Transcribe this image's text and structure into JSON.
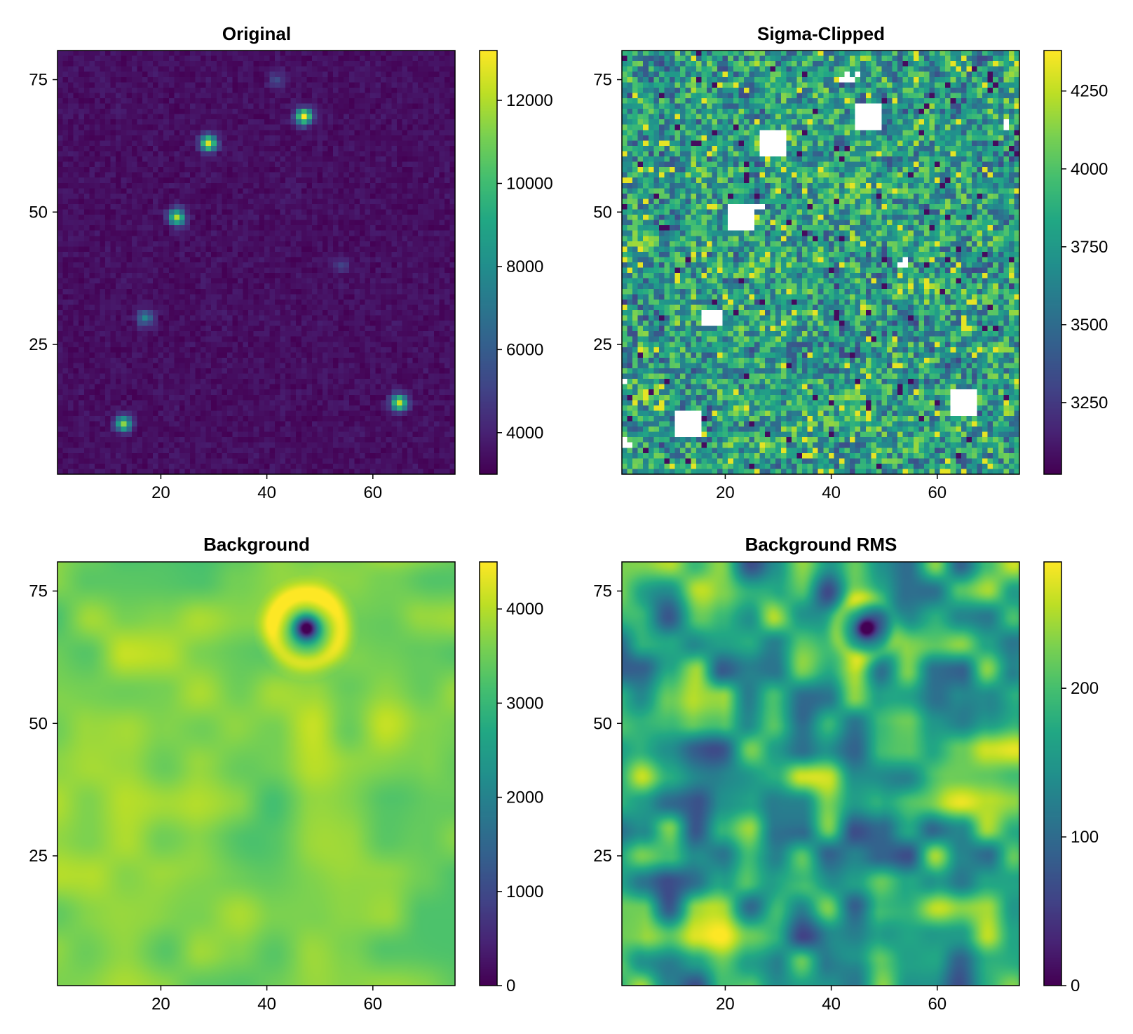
{
  "figure": {
    "layout": "2x2 grid of heatmaps with colorbars",
    "colormap": "viridis"
  },
  "chart_data": [
    {
      "type": "heatmap",
      "title": "Original",
      "x_range": [
        1,
        75
      ],
      "y_range": [
        1,
        80
      ],
      "xticks": [
        20,
        40,
        60
      ],
      "yticks": [
        25,
        50,
        75
      ],
      "colorbar": {
        "range": [
          3000,
          13200
        ],
        "ticks": [
          4000,
          6000,
          8000,
          10000,
          12000
        ],
        "colormap": "viridis"
      },
      "background_level": 3400,
      "stars": [
        {
          "x": 48,
          "y": 68,
          "peak": 13200
        },
        {
          "x": 30,
          "y": 63,
          "peak": 12500
        },
        {
          "x": 24,
          "y": 49,
          "peak": 12000
        },
        {
          "x": 66,
          "y": 14,
          "peak": 12500
        },
        {
          "x": 14,
          "y": 10,
          "peak": 11000
        },
        {
          "x": 18,
          "y": 30,
          "peak": 7500
        },
        {
          "x": 43,
          "y": 75,
          "peak": 5200
        },
        {
          "x": 55,
          "y": 40,
          "peak": 5000
        }
      ]
    },
    {
      "type": "heatmap",
      "title": "Sigma-Clipped",
      "x_range": [
        1,
        75
      ],
      "y_range": [
        1,
        80
      ],
      "xticks": [
        20,
        40,
        60
      ],
      "yticks": [
        25,
        50,
        75
      ],
      "colorbar": {
        "range": [
          3020,
          4380
        ],
        "ticks": [
          3250,
          3500,
          3750,
          4000,
          4250
        ],
        "colormap": "viridis"
      },
      "clipped_regions_note": "white pixels are clipped (masked) values"
    },
    {
      "type": "heatmap",
      "title": "Background",
      "x_range": [
        1,
        75
      ],
      "y_range": [
        1,
        80
      ],
      "xticks": [
        20,
        40,
        60
      ],
      "yticks": [
        25,
        50,
        75
      ],
      "colorbar": {
        "range": [
          0,
          4500
        ],
        "ticks": [
          0,
          1000,
          2000,
          3000,
          4000
        ],
        "colormap": "viridis"
      },
      "features": [
        {
          "x": 48,
          "y": 68,
          "min": 0,
          "ring_max": 4400
        }
      ]
    },
    {
      "type": "heatmap",
      "title": "Background RMS",
      "x_range": [
        1,
        75
      ],
      "y_range": [
        1,
        80
      ],
      "xticks": [
        20,
        40,
        60
      ],
      "yticks": [
        25,
        50,
        75
      ],
      "colorbar": {
        "range": [
          0,
          285
        ],
        "ticks": [
          0,
          100,
          200
        ],
        "colormap": "viridis"
      },
      "features": [
        {
          "x": 47,
          "y": 68,
          "min": 0
        }
      ]
    }
  ]
}
